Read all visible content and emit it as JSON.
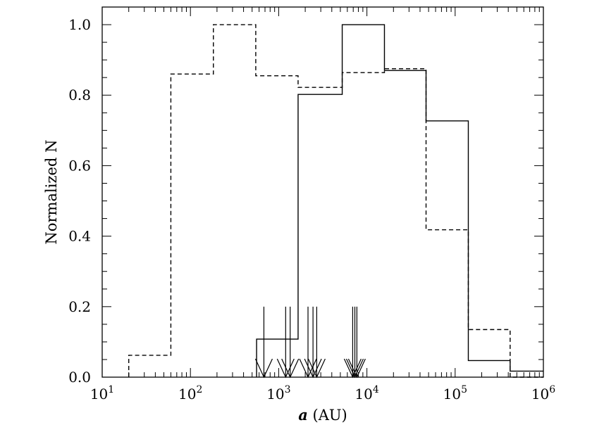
{
  "chart_data": {
    "type": "step-histogram",
    "x_scale": "log",
    "xlabel": {
      "italic": "a",
      "rest": " (AU)"
    },
    "ylabel": "Normalized N",
    "xlim": [
      10,
      1000000
    ],
    "ylim": [
      0.0,
      1.05
    ],
    "x_ticks": [
      {
        "value": 10,
        "base": "10",
        "exp": "1"
      },
      {
        "value": 100,
        "base": "10",
        "exp": "2"
      },
      {
        "value": 1000,
        "base": "10",
        "exp": "3"
      },
      {
        "value": 10000,
        "base": "10",
        "exp": "4"
      },
      {
        "value": 100000,
        "base": "10",
        "exp": "5"
      },
      {
        "value": 1000000,
        "base": "10",
        "exp": "6"
      }
    ],
    "y_ticks": [
      "0.0",
      "0.2",
      "0.4",
      "0.6",
      "0.8",
      "1.0"
    ],
    "y_tick_values": [
      0.0,
      0.2,
      0.4,
      0.6,
      0.8,
      1.0
    ],
    "series": [
      {
        "style": "solid",
        "bin_edges": [
          562,
          1660,
          5250,
          15800,
          46800,
          141000,
          420000,
          1000000
        ],
        "values": [
          0.108,
          0.802,
          1.0,
          0.87,
          0.727,
          0.047,
          0.017
        ]
      },
      {
        "style": "dashed",
        "bin_edges": [
          20,
          60,
          182,
          550,
          1660,
          5250,
          15800,
          46800,
          141000,
          420000,
          1000000
        ],
        "values": [
          0.062,
          0.86,
          1.0,
          0.855,
          0.822,
          0.864,
          0.875,
          0.418,
          0.135,
          0.0
        ]
      }
    ],
    "upper_limit_arrows": {
      "top": 0.2,
      "x": [
        680,
        1200,
        1350,
        2150,
        2450,
        2700,
        6900,
        7300,
        7700
      ]
    }
  }
}
